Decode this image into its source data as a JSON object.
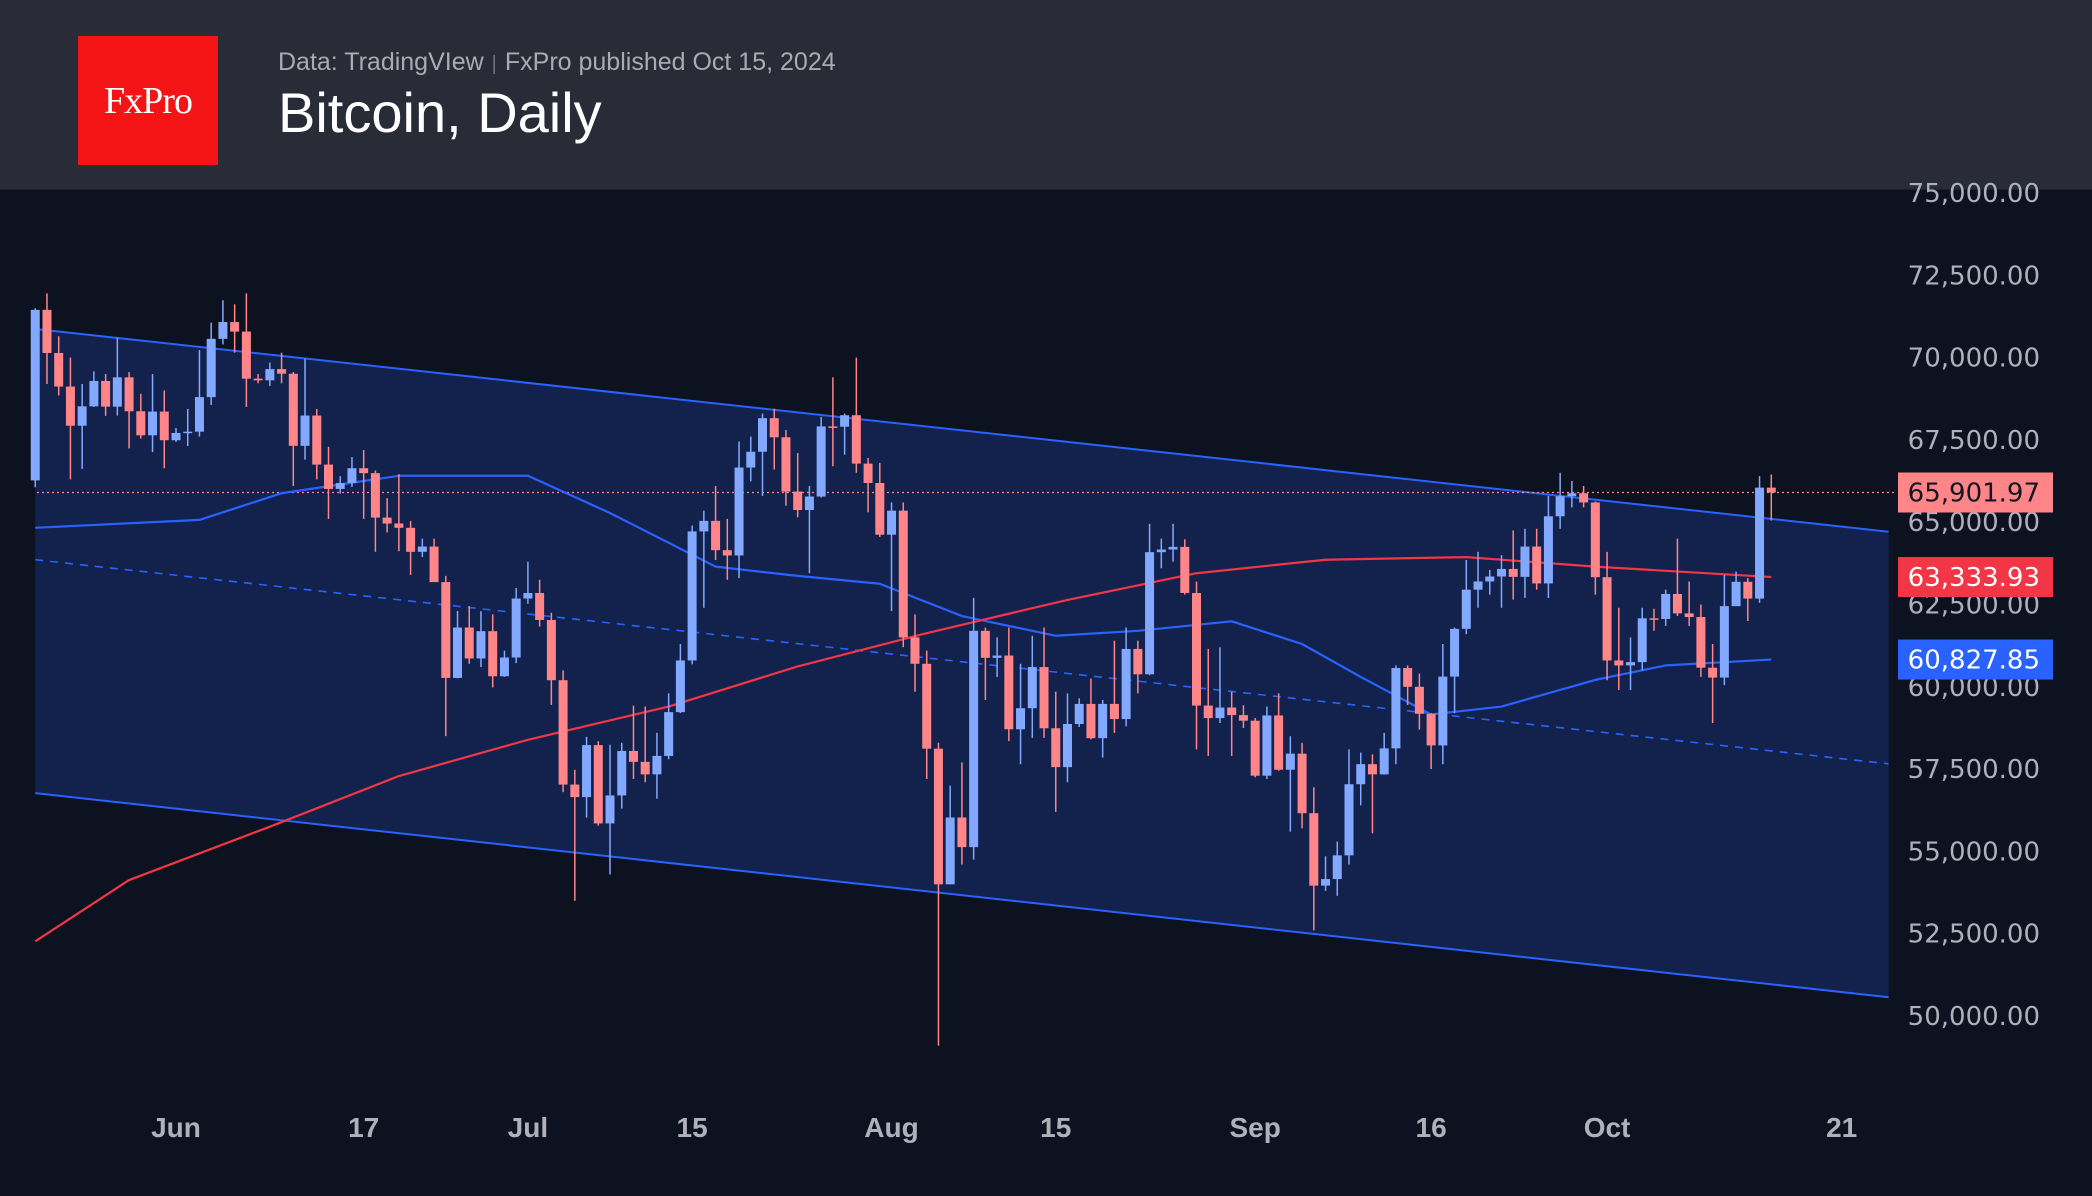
{
  "header": {
    "logo_text": "FxPro",
    "source": "Data: TradingVIew",
    "published": "FxPro published Oct 15, 2024",
    "title": "Bitcoin, Daily"
  },
  "colors": {
    "up": "#82a9ff",
    "down": "#ff8589",
    "ma_blue": "#2962ff",
    "ma_red": "#f23645",
    "channel": "#2962ff",
    "channel_fill": "#12224d",
    "background": "#0d1220",
    "header": "#292b37"
  },
  "chart_data": {
    "type": "candlestick",
    "title": "Bitcoin, Daily",
    "ylim": [
      48000,
      75500
    ],
    "y_ticks": [
      "75,000.00",
      "72,500.00",
      "70,000.00",
      "67,500.00",
      "65,000.00",
      "62,500.00",
      "60,000.00",
      "57,500.00",
      "55,000.00",
      "52,500.00",
      "50,000.00"
    ],
    "y_tick_values": [
      75000,
      72500,
      70000,
      67500,
      65000,
      62500,
      60000,
      57500,
      55000,
      52500,
      50000
    ],
    "x_ticks": [
      {
        "label": "Jun",
        "date": "2024-06-01"
      },
      {
        "label": "17",
        "date": "2024-06-17"
      },
      {
        "label": "Jul",
        "date": "2024-07-01"
      },
      {
        "label": "15",
        "date": "2024-07-15"
      },
      {
        "label": "Aug",
        "date": "2024-08-01"
      },
      {
        "label": "15",
        "date": "2024-08-15"
      },
      {
        "label": "Sep",
        "date": "2024-09-01"
      },
      {
        "label": "16",
        "date": "2024-09-16"
      },
      {
        "label": "Oct",
        "date": "2024-10-01"
      },
      {
        "label": "21",
        "date": "2024-10-21"
      }
    ],
    "grid": false,
    "price_labels": [
      {
        "text": "65,901.97",
        "value": 65901.97,
        "kind": "last"
      },
      {
        "text": "63,333.93",
        "value": 63333.93,
        "kind": "ma_red"
      },
      {
        "text": "60,827.85",
        "value": 60827.85,
        "kind": "ma_blue"
      }
    ],
    "channel": {
      "upper": [
        [
          "2024-05-20",
          70870
        ],
        [
          "2024-10-25",
          64710
        ]
      ],
      "middle": [
        [
          "2024-05-20",
          63860
        ],
        [
          "2024-10-25",
          57660
        ]
      ],
      "lower": [
        [
          "2024-05-20",
          56770
        ],
        [
          "2024-10-25",
          50570
        ]
      ]
    },
    "ma_blue": [
      [
        "2024-05-20",
        64830
      ],
      [
        "2024-06-03",
        65070
      ],
      [
        "2024-06-10",
        65880
      ],
      [
        "2024-06-20",
        66410
      ],
      [
        "2024-07-01",
        66410
      ],
      [
        "2024-07-08",
        65280
      ],
      [
        "2024-07-17",
        63650
      ],
      [
        "2024-07-24",
        63370
      ],
      [
        "2024-07-31",
        63130
      ],
      [
        "2024-08-07",
        62150
      ],
      [
        "2024-08-15",
        61550
      ],
      [
        "2024-08-22",
        61700
      ],
      [
        "2024-08-30",
        61990
      ],
      [
        "2024-09-05",
        61300
      ],
      [
        "2024-09-10",
        60300
      ],
      [
        "2024-09-16",
        59160
      ],
      [
        "2024-09-22",
        59400
      ],
      [
        "2024-09-30",
        60210
      ],
      [
        "2024-10-06",
        60650
      ],
      [
        "2024-10-15",
        60827.85
      ]
    ],
    "ma_red": [
      [
        "2024-05-20",
        52270
      ],
      [
        "2024-05-28",
        54130
      ],
      [
        "2024-06-09",
        55750
      ],
      [
        "2024-06-20",
        57290
      ],
      [
        "2024-07-01",
        58390
      ],
      [
        "2024-07-13",
        59400
      ],
      [
        "2024-07-24",
        60620
      ],
      [
        "2024-08-04",
        61630
      ],
      [
        "2024-08-16",
        62640
      ],
      [
        "2024-08-27",
        63450
      ],
      [
        "2024-09-07",
        63860
      ],
      [
        "2024-09-19",
        63940
      ],
      [
        "2024-09-30",
        63650
      ],
      [
        "2024-10-15",
        63333.93
      ]
    ],
    "ohlc_columns": [
      "date",
      "open",
      "high",
      "low",
      "close"
    ],
    "ohlc": [
      [
        "2024-05-20",
        66270,
        71500,
        66060,
        71450
      ],
      [
        "2024-05-21",
        71450,
        71950,
        69200,
        70140
      ],
      [
        "2024-05-22",
        70140,
        70650,
        68850,
        69120
      ],
      [
        "2024-05-23",
        69120,
        70000,
        66300,
        67930
      ],
      [
        "2024-05-24",
        67930,
        69200,
        66620,
        68520
      ],
      [
        "2024-05-25",
        68520,
        69580,
        68500,
        69290
      ],
      [
        "2024-05-26",
        69290,
        69500,
        68230,
        68510
      ],
      [
        "2024-05-27",
        68510,
        70600,
        68240,
        69400
      ],
      [
        "2024-05-28",
        69400,
        69560,
        67240,
        68370
      ],
      [
        "2024-05-29",
        68370,
        68900,
        67540,
        67640
      ],
      [
        "2024-05-30",
        67640,
        69500,
        67130,
        68360
      ],
      [
        "2024-05-31",
        68360,
        69000,
        66640,
        67490
      ],
      [
        "2024-06-01",
        67490,
        67860,
        67440,
        67710
      ],
      [
        "2024-06-02",
        67710,
        68440,
        67310,
        67750
      ],
      [
        "2024-06-03",
        67750,
        70230,
        67600,
        68800
      ],
      [
        "2024-06-04",
        68800,
        71060,
        68560,
        70570
      ],
      [
        "2024-06-05",
        70570,
        71740,
        70400,
        71080
      ],
      [
        "2024-06-06",
        71080,
        71620,
        70150,
        70790
      ],
      [
        "2024-06-07",
        70790,
        71950,
        68500,
        69360
      ],
      [
        "2024-06-08",
        69360,
        69500,
        69220,
        69310
      ],
      [
        "2024-06-09",
        69310,
        69850,
        69140,
        69650
      ],
      [
        "2024-06-10",
        69650,
        70150,
        69220,
        69510
      ],
      [
        "2024-06-11",
        69510,
        69560,
        66100,
        67320
      ],
      [
        "2024-06-12",
        67320,
        69970,
        66900,
        68240
      ],
      [
        "2024-06-13",
        68240,
        68440,
        66300,
        66750
      ],
      [
        "2024-06-14",
        66750,
        67290,
        65100,
        66010
      ],
      [
        "2024-06-15",
        66010,
        66400,
        65870,
        66190
      ],
      [
        "2024-06-16",
        66190,
        66980,
        66070,
        66640
      ],
      [
        "2024-06-17",
        66640,
        67190,
        65100,
        66490
      ],
      [
        "2024-06-18",
        66490,
        66570,
        64100,
        65140
      ],
      [
        "2024-06-19",
        65140,
        65730,
        64690,
        64960
      ],
      [
        "2024-06-20",
        64960,
        66460,
        64120,
        64830
      ],
      [
        "2024-06-21",
        64830,
        65040,
        63400,
        64100
      ],
      [
        "2024-06-22",
        64100,
        64500,
        63940,
        64260
      ],
      [
        "2024-06-23",
        64260,
        64500,
        63360,
        63180
      ],
      [
        "2024-06-24",
        63180,
        63370,
        58500,
        60270
      ],
      [
        "2024-06-25",
        60270,
        62300,
        60260,
        61800
      ],
      [
        "2024-06-26",
        61800,
        62450,
        60700,
        60860
      ],
      [
        "2024-06-27",
        60860,
        62300,
        60600,
        61690
      ],
      [
        "2024-06-28",
        61690,
        62200,
        59980,
        60320
      ],
      [
        "2024-06-29",
        60320,
        61100,
        60300,
        60890
      ],
      [
        "2024-06-30",
        60890,
        63000,
        60720,
        62680
      ],
      [
        "2024-07-01",
        62680,
        63800,
        62520,
        62850
      ],
      [
        "2024-07-02",
        62850,
        63250,
        61830,
        62030
      ],
      [
        "2024-07-03",
        62030,
        62250,
        59450,
        60200
      ],
      [
        "2024-07-04",
        60200,
        60500,
        56800,
        57030
      ],
      [
        "2024-07-05",
        57030,
        57480,
        53500,
        56650
      ],
      [
        "2024-07-06",
        56650,
        58480,
        56030,
        58230
      ],
      [
        "2024-07-07",
        58230,
        58350,
        55780,
        55850
      ],
      [
        "2024-07-08",
        55850,
        58240,
        54300,
        56700
      ],
      [
        "2024-07-09",
        56700,
        58300,
        56300,
        58050
      ],
      [
        "2024-07-10",
        58050,
        59430,
        57200,
        57720
      ],
      [
        "2024-07-11",
        57720,
        59400,
        57100,
        57340
      ],
      [
        "2024-07-12",
        57340,
        58600,
        56600,
        57900
      ],
      [
        "2024-07-13",
        57900,
        59800,
        57800,
        59230
      ],
      [
        "2024-07-14",
        59230,
        61300,
        59200,
        60800
      ],
      [
        "2024-07-15",
        60800,
        64900,
        60680,
        64720
      ],
      [
        "2024-07-16",
        64720,
        65350,
        62400,
        65040
      ],
      [
        "2024-07-17",
        65040,
        66100,
        63850,
        64150
      ],
      [
        "2024-07-18",
        64150,
        65100,
        63250,
        63990
      ],
      [
        "2024-07-19",
        63990,
        67450,
        63300,
        66660
      ],
      [
        "2024-07-20",
        66660,
        67600,
        66240,
        67140
      ],
      [
        "2024-07-21",
        67140,
        68300,
        65800,
        68160
      ],
      [
        "2024-07-22",
        68160,
        68450,
        66600,
        67580
      ],
      [
        "2024-07-23",
        67580,
        67800,
        65500,
        65930
      ],
      [
        "2024-07-24",
        65930,
        67100,
        65150,
        65370
      ],
      [
        "2024-07-25",
        65370,
        66100,
        63450,
        65780
      ],
      [
        "2024-07-26",
        65780,
        68200,
        65750,
        67910
      ],
      [
        "2024-07-27",
        67910,
        69400,
        66700,
        67900
      ],
      [
        "2024-07-28",
        67900,
        68300,
        67050,
        68250
      ],
      [
        "2024-07-29",
        68250,
        70000,
        66500,
        66780
      ],
      [
        "2024-07-30",
        66780,
        66950,
        65300,
        66190
      ],
      [
        "2024-07-31",
        66190,
        66800,
        64550,
        64620
      ],
      [
        "2024-08-01",
        64620,
        65600,
        62300,
        65350
      ],
      [
        "2024-08-02",
        65350,
        65600,
        61200,
        61500
      ],
      [
        "2024-08-03",
        61500,
        62200,
        59850,
        60700
      ],
      [
        "2024-08-04",
        60700,
        61100,
        57200,
        58120
      ],
      [
        "2024-08-05",
        58120,
        58300,
        49100,
        54000
      ],
      [
        "2024-08-06",
        54000,
        57000,
        54000,
        56030
      ],
      [
        "2024-08-07",
        56030,
        57700,
        54600,
        55130
      ],
      [
        "2024-08-08",
        55130,
        62700,
        54750,
        61700
      ],
      [
        "2024-08-09",
        61700,
        61800,
        59600,
        60880
      ],
      [
        "2024-08-10",
        60880,
        61500,
        60300,
        60950
      ],
      [
        "2024-08-11",
        60950,
        61800,
        58350,
        58710
      ],
      [
        "2024-08-12",
        58710,
        60700,
        57650,
        59350
      ],
      [
        "2024-08-13",
        59350,
        61550,
        58450,
        60600
      ],
      [
        "2024-08-14",
        60600,
        61800,
        58450,
        58740
      ],
      [
        "2024-08-15",
        58740,
        59850,
        56200,
        57560
      ],
      [
        "2024-08-16",
        57560,
        59800,
        57100,
        58870
      ],
      [
        "2024-08-17",
        58870,
        59650,
        58780,
        59480
      ],
      [
        "2024-08-18",
        59480,
        60250,
        58400,
        58440
      ],
      [
        "2024-08-19",
        58440,
        59600,
        57850,
        59480
      ],
      [
        "2024-08-20",
        59480,
        61400,
        58600,
        59020
      ],
      [
        "2024-08-21",
        59020,
        61800,
        58800,
        61150
      ],
      [
        "2024-08-22",
        61150,
        61400,
        59800,
        60380
      ],
      [
        "2024-08-23",
        60380,
        64950,
        60350,
        64090
      ],
      [
        "2024-08-24",
        64090,
        64500,
        63600,
        64170
      ],
      [
        "2024-08-25",
        64170,
        64950,
        63800,
        64250
      ],
      [
        "2024-08-26",
        64250,
        64480,
        62800,
        62850
      ],
      [
        "2024-08-27",
        62850,
        63200,
        58100,
        59430
      ],
      [
        "2024-08-28",
        59430,
        61150,
        57900,
        59050
      ],
      [
        "2024-08-29",
        59050,
        61200,
        58900,
        59370
      ],
      [
        "2024-08-30",
        59370,
        59850,
        57900,
        59140
      ],
      [
        "2024-08-31",
        59140,
        59440,
        58750,
        58970
      ],
      [
        "2024-09-01",
        58970,
        59050,
        57250,
        57300
      ],
      [
        "2024-09-02",
        57300,
        59400,
        57200,
        59130
      ],
      [
        "2024-09-03",
        59130,
        59800,
        57450,
        57480
      ],
      [
        "2024-09-04",
        57480,
        58500,
        55600,
        57970
      ],
      [
        "2024-09-05",
        57970,
        58300,
        55700,
        56160
      ],
      [
        "2024-09-06",
        56160,
        56950,
        52600,
        53960
      ],
      [
        "2024-09-07",
        53960,
        54850,
        53800,
        54160
      ],
      [
        "2024-09-08",
        54160,
        55300,
        53650,
        54880
      ],
      [
        "2024-09-09",
        54880,
        58100,
        54600,
        57040
      ],
      [
        "2024-09-10",
        57040,
        58000,
        56400,
        57650
      ],
      [
        "2024-09-11",
        57650,
        57950,
        55550,
        57340
      ],
      [
        "2024-09-12",
        57340,
        58600,
        57330,
        58130
      ],
      [
        "2024-09-13",
        58130,
        60650,
        57650,
        60570
      ],
      [
        "2024-09-14",
        60570,
        60650,
        59450,
        60000
      ],
      [
        "2024-09-15",
        60000,
        60400,
        58700,
        59180
      ],
      [
        "2024-09-16",
        59180,
        59200,
        57500,
        58220
      ],
      [
        "2024-09-17",
        58220,
        61300,
        57650,
        60310
      ],
      [
        "2024-09-18",
        60310,
        61800,
        59200,
        61760
      ],
      [
        "2024-09-19",
        61760,
        63850,
        61600,
        62950
      ],
      [
        "2024-09-20",
        62950,
        64100,
        62400,
        63200
      ],
      [
        "2024-09-21",
        63200,
        63550,
        62800,
        63350
      ],
      [
        "2024-09-22",
        63350,
        64000,
        62400,
        63580
      ],
      [
        "2024-09-23",
        63580,
        64750,
        62650,
        63340
      ],
      [
        "2024-09-24",
        63340,
        64800,
        62700,
        64260
      ],
      [
        "2024-09-25",
        64260,
        64800,
        62950,
        63140
      ],
      [
        "2024-09-26",
        63140,
        65800,
        62700,
        65180
      ],
      [
        "2024-09-27",
        65180,
        66500,
        64800,
        65790
      ],
      [
        "2024-09-28",
        65790,
        66250,
        65450,
        65880
      ],
      [
        "2024-09-29",
        65880,
        66100,
        65450,
        65600
      ],
      [
        "2024-09-30",
        65600,
        65630,
        62800,
        63330
      ],
      [
        "2024-10-01",
        63330,
        64100,
        60200,
        60800
      ],
      [
        "2024-10-02",
        60800,
        62400,
        59900,
        60650
      ],
      [
        "2024-10-03",
        60650,
        61500,
        59900,
        60750
      ],
      [
        "2024-10-04",
        60750,
        62400,
        60500,
        62080
      ],
      [
        "2024-10-05",
        62080,
        62370,
        61700,
        62060
      ],
      [
        "2024-10-06",
        62060,
        62950,
        61850,
        62820
      ],
      [
        "2024-10-07",
        62820,
        64500,
        62150,
        62230
      ],
      [
        "2024-10-08",
        62230,
        63200,
        61850,
        62120
      ],
      [
        "2024-10-09",
        62120,
        62500,
        60300,
        60580
      ],
      [
        "2024-10-10",
        60580,
        61300,
        58900,
        60280
      ],
      [
        "2024-10-11",
        60280,
        63400,
        60050,
        62450
      ],
      [
        "2024-10-12",
        62450,
        63500,
        62450,
        63190
      ],
      [
        "2024-10-13",
        63190,
        63300,
        62000,
        62680
      ],
      [
        "2024-10-14",
        62680,
        66400,
        62550,
        66050
      ],
      [
        "2024-10-15",
        66050,
        66450,
        65050,
        65902
      ]
    ]
  }
}
